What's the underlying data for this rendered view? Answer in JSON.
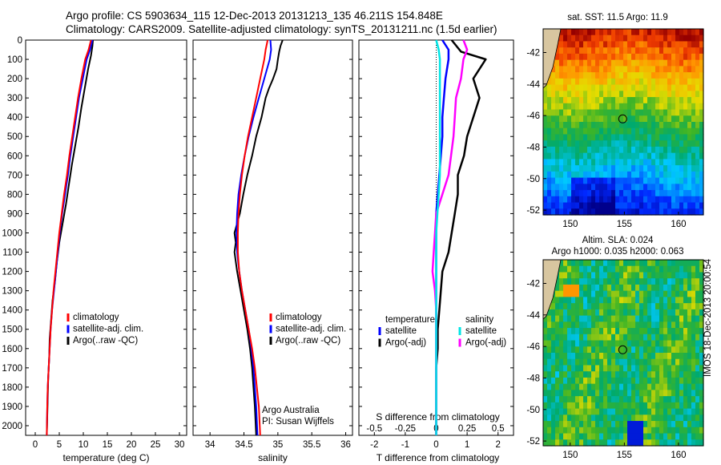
{
  "header": {
    "line1": "Argo profile: CS 5903634_115 12-Dec-2013 20131213_135 46.211S 154.848E",
    "line2": "Climatology: CARS2009. Satellite-adjusted climatology: synTS_20131211.nc (1.5d earlier)"
  },
  "colors": {
    "climatology": "#ff0000",
    "satellite": "#0000ff",
    "argo": "#000000",
    "sal_satellite": "#00e5e5",
    "sal_argo": "#ff00ff"
  },
  "chart_data": [
    {
      "type": "line",
      "id": "temperature",
      "xlabel": "temperature (deg C)",
      "ylabel": "",
      "xlim": [
        -2,
        31.5
      ],
      "ylim": [
        2050,
        0
      ],
      "xticks": [
        "0",
        "5",
        "10",
        "15",
        "20",
        "25",
        "30"
      ],
      "yticks": [
        "0",
        "100",
        "200",
        "300",
        "400",
        "500",
        "600",
        "700",
        "800",
        "900",
        "1000",
        "1100",
        "1200",
        "1300",
        "1400",
        "1500",
        "1600",
        "1700",
        "1800",
        "1900",
        "2000"
      ],
      "legend": [
        "climatology",
        "satellite-adj. clim.",
        "Argo(..raw -QC)"
      ],
      "series": [
        {
          "name": "climatology",
          "x": [
            11.6,
            11.1,
            10.4,
            9.6,
            8.9,
            8.3,
            7.7,
            7.1,
            6.6,
            6.0,
            5.5,
            5.0,
            4.6,
            4.2,
            3.8,
            3.5,
            3.2,
            3.0,
            2.8,
            2.6,
            2.5,
            2.4
          ],
          "y": [
            0,
            50,
            100,
            200,
            300,
            400,
            500,
            600,
            700,
            800,
            900,
            1000,
            1100,
            1200,
            1300,
            1400,
            1500,
            1600,
            1700,
            1800,
            1900,
            2050
          ]
        },
        {
          "name": "satellite-adj. clim.",
          "x": [
            11.9,
            11.4,
            10.7,
            9.9,
            9.1,
            8.5,
            7.9,
            7.3,
            6.8,
            6.2,
            5.6,
            5.1,
            4.7,
            4.3,
            3.9,
            3.5,
            3.2,
            3.0,
            2.8,
            2.6,
            2.5,
            2.4
          ],
          "y": [
            0,
            50,
            100,
            200,
            300,
            400,
            500,
            600,
            700,
            800,
            900,
            1000,
            1100,
            1200,
            1300,
            1400,
            1500,
            1600,
            1700,
            1800,
            1900,
            2050
          ]
        },
        {
          "name": "Argo(..raw -QC)",
          "x": [
            12.0,
            11.9,
            11.6,
            11.0,
            10.3,
            9.6,
            9.0,
            8.3,
            7.6,
            7.0,
            6.4,
            5.7,
            5.0,
            4.5,
            4.1,
            3.6,
            3.3,
            3.0,
            2.9,
            2.7,
            2.6,
            2.5,
            2.4
          ],
          "y": [
            0,
            30,
            80,
            150,
            250,
            350,
            450,
            550,
            650,
            750,
            850,
            950,
            1050,
            1150,
            1250,
            1350,
            1450,
            1550,
            1650,
            1750,
            1850,
            1950,
            2050
          ]
        }
      ]
    },
    {
      "type": "line",
      "id": "salinity",
      "xlabel": "salinity",
      "xlim": [
        33.75,
        36.1
      ],
      "ylim": [
        2050,
        0
      ],
      "xticks": [
        "34",
        "34.5",
        "35",
        "35.5",
        "36"
      ],
      "legend": [
        "climatology",
        "satellite-adj. clim.",
        "Argo(..raw -QC)"
      ],
      "annotation": [
        "Argo Australia",
        "PI: Susan Wijffels"
      ],
      "series": [
        {
          "name": "climatology",
          "x": [
            34.85,
            34.82,
            34.8,
            34.74,
            34.68,
            34.62,
            34.56,
            34.51,
            34.47,
            34.44,
            34.42,
            34.41,
            34.41,
            34.43,
            34.47,
            34.52,
            34.57,
            34.62,
            34.66,
            34.69,
            34.72,
            34.74
          ],
          "y": [
            0,
            50,
            100,
            200,
            300,
            400,
            500,
            600,
            700,
            800,
            900,
            1000,
            1100,
            1200,
            1300,
            1400,
            1500,
            1600,
            1700,
            1800,
            1900,
            2050
          ]
        },
        {
          "name": "satellite-adj. clim.",
          "x": [
            34.89,
            34.9,
            34.88,
            34.8,
            34.72,
            34.64,
            34.57,
            34.51,
            34.46,
            34.42,
            34.4,
            34.39,
            34.4,
            34.43,
            34.47,
            34.52,
            34.57,
            34.61,
            34.64,
            34.66,
            34.68,
            34.7
          ],
          "y": [
            0,
            50,
            100,
            200,
            300,
            400,
            500,
            600,
            700,
            800,
            900,
            1000,
            1100,
            1200,
            1300,
            1400,
            1500,
            1600,
            1700,
            1800,
            1900,
            2050
          ]
        },
        {
          "name": "Argo(..raw -QC)",
          "x": [
            35.07,
            35.04,
            35.02,
            35.0,
            34.98,
            34.93,
            34.87,
            34.82,
            34.76,
            34.68,
            34.62,
            34.55,
            34.49,
            34.44,
            34.4,
            34.36,
            34.38,
            34.36,
            34.4,
            34.45,
            34.5,
            34.55,
            34.59,
            34.62,
            34.64,
            34.66,
            34.68
          ],
          "y": [
            0,
            30,
            60,
            100,
            150,
            200,
            250,
            300,
            400,
            500,
            600,
            700,
            800,
            900,
            950,
            1000,
            1050,
            1100,
            1200,
            1300,
            1400,
            1500,
            1600,
            1700,
            1800,
            1900,
            2050
          ]
        }
      ]
    },
    {
      "type": "line",
      "id": "difference",
      "xlabel": "T difference from climatology",
      "xlabel_top": "S difference from climatology",
      "xlim": [
        -2.5,
        2.5
      ],
      "ylim": [
        2050,
        0
      ],
      "xticks": [
        "-2",
        "-1",
        "0",
        "1",
        "2"
      ],
      "xticks_top": [
        "-0.5",
        "-0.25",
        "0",
        "0.25",
        "0.5"
      ],
      "legend_groups": {
        "temperature": {
          "title": "temperature",
          "items": [
            "satellite",
            "Argo(-adj)"
          ]
        },
        "salinity": {
          "title": "salinity",
          "items": [
            "satellite",
            "Argo(-adj)"
          ]
        }
      },
      "series": [
        {
          "name": "satellite",
          "group": "temperature",
          "x": [
            0.2,
            0.4,
            0.4,
            0.3,
            0.25,
            0.2,
            0.2,
            0.15,
            0.1,
            0.05,
            0.0,
            0.0,
            0.0,
            0.0,
            0.0,
            0.0,
            0.0,
            0.0,
            0.0,
            0.0,
            0.0
          ],
          "y": [
            0,
            50,
            100,
            200,
            300,
            400,
            500,
            600,
            700,
            800,
            900,
            1000,
            1100,
            1200,
            1300,
            1400,
            1500,
            1600,
            1700,
            1800,
            2050
          ]
        },
        {
          "name": "Argo(-adj)",
          "group": "temperature",
          "x": [
            0.5,
            0.8,
            1.6,
            1.2,
            1.4,
            1.2,
            1.0,
            0.9,
            0.7,
            0.7,
            0.6,
            0.5,
            0.4,
            0.2,
            0.15,
            0.1,
            0.05,
            0.05,
            0.0,
            0.0,
            0.0
          ],
          "y": [
            0,
            60,
            100,
            200,
            300,
            400,
            500,
            600,
            700,
            800,
            900,
            1000,
            1100,
            1200,
            1300,
            1400,
            1500,
            1600,
            1700,
            1800,
            2050
          ]
        },
        {
          "name": "satellite",
          "group": "salinity",
          "x": [
            0.0,
            0.02,
            0.03,
            0.03,
            0.03,
            0.03,
            0.03,
            0.03,
            0.03,
            0.02,
            0.01,
            0.0,
            0.0,
            0.0,
            0.0,
            0.0,
            0.0,
            0.0,
            0.0,
            0.0,
            0.0
          ],
          "y": [
            0,
            50,
            100,
            200,
            300,
            400,
            500,
            600,
            700,
            800,
            900,
            1000,
            1100,
            1200,
            1300,
            1400,
            1500,
            1600,
            1700,
            1800,
            2050
          ]
        },
        {
          "name": "Argo(-adj)",
          "group": "salinity",
          "x": [
            0.22,
            0.25,
            0.22,
            0.2,
            0.16,
            0.15,
            0.14,
            0.12,
            0.1,
            0.05,
            0.0,
            -0.01,
            -0.02,
            -0.03,
            -0.01,
            0.0,
            0.0,
            0.0,
            0.0,
            0.0,
            0.0
          ],
          "y": [
            0,
            50,
            100,
            200,
            300,
            400,
            500,
            600,
            700,
            800,
            900,
            1000,
            1100,
            1200,
            1300,
            1400,
            1500,
            1600,
            1700,
            1800,
            2050
          ]
        }
      ]
    },
    {
      "type": "heatmap",
      "id": "sst-map",
      "title": "sat. SST: 11.5  Argo: 11.9",
      "xlim": [
        147.5,
        162.3
      ],
      "ylim": [
        -52.3,
        -40.5
      ],
      "xticks": [
        "150",
        "155",
        "160"
      ],
      "yticks": [
        "-42",
        "-44",
        "-46",
        "-48",
        "-50",
        "-52"
      ],
      "marker": {
        "lon": 154.848,
        "lat": -46.211
      }
    },
    {
      "type": "heatmap",
      "id": "sla-map",
      "title_lines": [
        "Altim. SLA: 0.024",
        "Argo h1000: 0.035 h2000: 0.063"
      ],
      "xlim": [
        147.5,
        162.3
      ],
      "ylim": [
        -52.3,
        -40.5
      ],
      "xticks": [
        "150",
        "155",
        "160"
      ],
      "yticks": [
        "-42",
        "-44",
        "-46",
        "-48",
        "-50",
        "-52"
      ],
      "marker": {
        "lon": 154.848,
        "lat": -46.211
      }
    }
  ],
  "side_label": "IMOS 18-Dec-2013 20:00:54"
}
